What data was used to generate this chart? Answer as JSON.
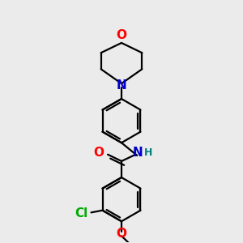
{
  "bg_color": "#ebebeb",
  "bond_color": "#000000",
  "bond_width": 1.6,
  "dbo": 0.018,
  "atom_colors": {
    "O": "#ff0000",
    "N": "#0000cc",
    "Cl": "#00aa00",
    "H": "#008080"
  },
  "font_size": 11
}
